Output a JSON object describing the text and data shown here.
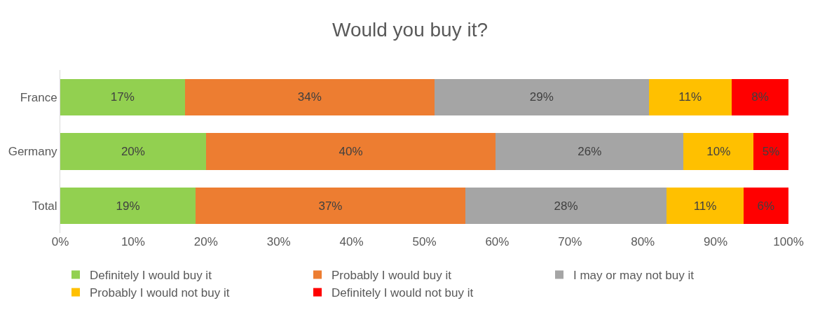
{
  "chart_data": {
    "type": "bar",
    "orientation": "horizontal",
    "stacked": true,
    "title": "Would you buy it?",
    "categories": [
      "France",
      "Germany",
      "Total"
    ],
    "series": [
      {
        "name": "Definitely I would buy it",
        "color": "#92d050",
        "values": [
          17.1,
          20.0,
          18.6
        ],
        "value_labels": [
          "17%",
          "20%",
          "19%"
        ]
      },
      {
        "name": "Probably I would buy it",
        "color": "#ed7d31",
        "values": [
          34.3,
          39.8,
          37.0
        ],
        "value_labels": [
          "34%",
          "40%",
          "37%"
        ]
      },
      {
        "name": "I may or may not buy it",
        "color": "#a5a5a5",
        "values": [
          29.4,
          25.8,
          27.7
        ],
        "value_labels": [
          "29%",
          "26%",
          "28%"
        ]
      },
      {
        "name": "Probably I would not buy it",
        "color": "#ffc000",
        "values": [
          11.4,
          9.6,
          10.5
        ],
        "value_labels": [
          "11%",
          "10%",
          "11%"
        ]
      },
      {
        "name": "Definitely I would not buy it",
        "color": "#ff0000",
        "values": [
          7.8,
          4.8,
          6.2
        ],
        "value_labels": [
          "8%",
          "5%",
          "6%"
        ]
      }
    ],
    "xlim": [
      0,
      100
    ],
    "xticks": [
      {
        "value": 0,
        "label": "0%"
      },
      {
        "value": 10,
        "label": "10%"
      },
      {
        "value": 20,
        "label": "20%"
      },
      {
        "value": 30,
        "label": "30%"
      },
      {
        "value": 40,
        "label": "40%"
      },
      {
        "value": 50,
        "label": "50%"
      },
      {
        "value": 60,
        "label": "60%"
      },
      {
        "value": 70,
        "label": "70%"
      },
      {
        "value": 80,
        "label": "80%"
      },
      {
        "value": 90,
        "label": "90%"
      },
      {
        "value": 100,
        "label": "100%"
      }
    ],
    "grid": false,
    "legend": "bottom"
  }
}
